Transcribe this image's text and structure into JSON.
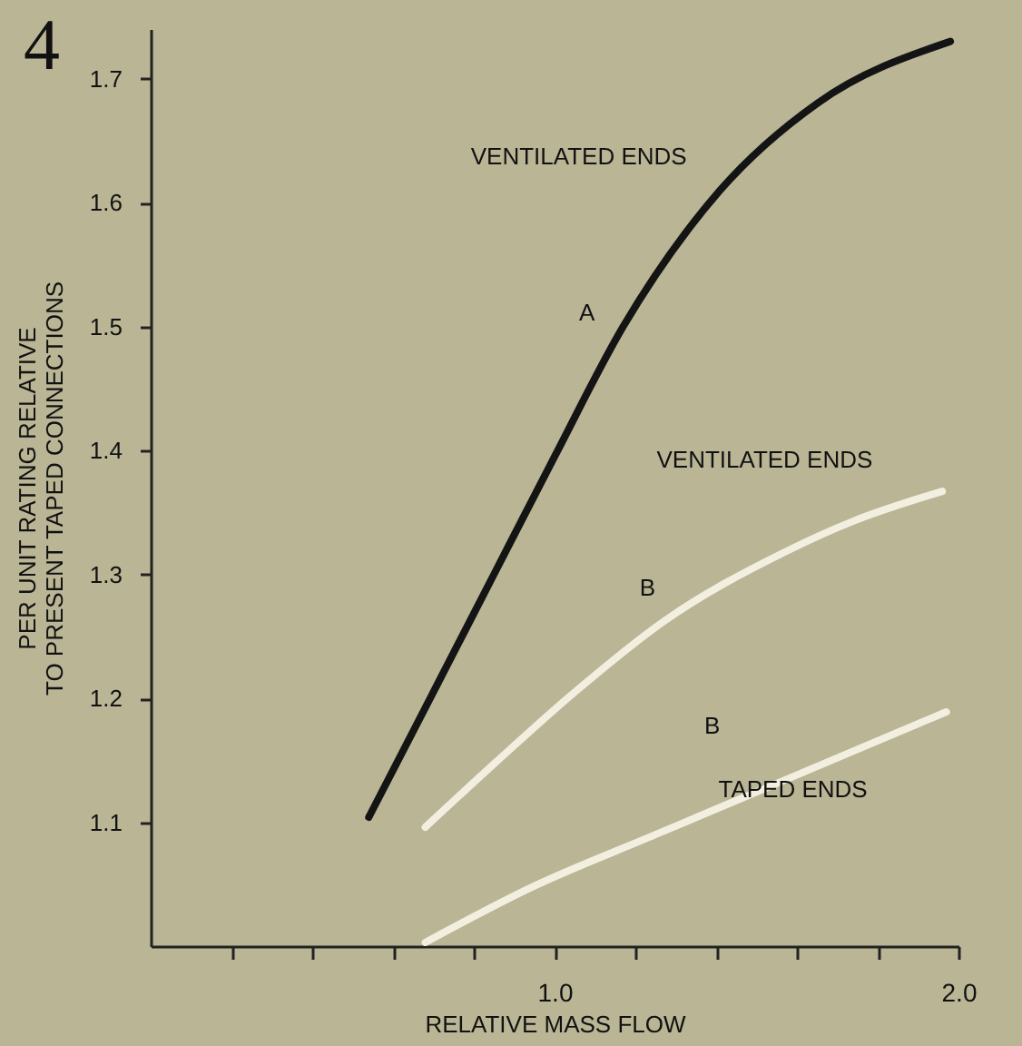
{
  "chart_data": {
    "type": "line",
    "title": "4",
    "xlabel": "RELATIVE MASS FLOW",
    "ylabel": "PER UNIT RATING RELATIVE\nTO PRESENT TAPED CONNECTIONS",
    "xlim": [
      0,
      2.0
    ],
    "ylim": [
      1.0,
      1.74
    ],
    "xticks": [
      {
        "value": 0.2,
        "label": null
      },
      {
        "value": 0.4,
        "label": null
      },
      {
        "value": 0.6,
        "label": null
      },
      {
        "value": 0.8,
        "label": null
      },
      {
        "value": 1.0,
        "label": "1.0"
      },
      {
        "value": 1.2,
        "label": null
      },
      {
        "value": 1.4,
        "label": null
      },
      {
        "value": 1.6,
        "label": null
      },
      {
        "value": 1.8,
        "label": null
      },
      {
        "value": 2.0,
        "label": "2.0"
      }
    ],
    "yticks": [
      1.1,
      1.2,
      1.3,
      1.4,
      1.5,
      1.6,
      1.7
    ],
    "grid": false,
    "marker": "none",
    "line_style": "solid",
    "series": [
      {
        "color": "#141414",
        "x": [
          0.54,
          0.7,
          0.85,
          1.0,
          1.17,
          1.41,
          1.65,
          1.98
        ],
        "values": [
          1.104,
          1.205,
          1.3,
          1.395,
          1.5,
          1.61,
          1.68,
          1.73
        ]
      },
      {
        "color": "#f3efe0",
        "x": [
          0.68,
          0.86,
          1.05,
          1.27,
          1.57,
          1.74,
          1.96
        ],
        "values": [
          1.096,
          1.15,
          1.205,
          1.262,
          1.318,
          1.343,
          1.367
        ]
      },
      {
        "color": "#f3efe0",
        "x": [
          0.68,
          0.94,
          1.25,
          1.57,
          1.97
        ],
        "values": [
          1.003,
          1.047,
          1.09,
          1.134,
          1.189
        ]
      }
    ],
    "annotations": [
      "VENTILATED ENDS",
      "A",
      "VENTILATED ENDS",
      "B",
      "B",
      "TAPED ENDS"
    ]
  }
}
